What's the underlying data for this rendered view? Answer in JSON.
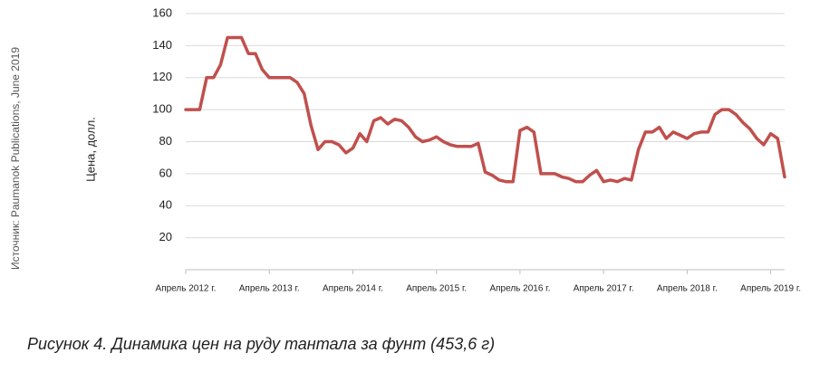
{
  "chart_data": {
    "type": "line",
    "source": "Источник: Paumanok Publications, June 2019",
    "y_label": "Цена, долл.",
    "caption": "Рисунок 4. Динамика цен на руду тантала за фунт (453,6 г)",
    "categories": [
      "Апрель 2012 г.",
      null,
      null,
      null,
      null,
      null,
      null,
      null,
      null,
      null,
      null,
      null,
      "Апрель 2013 г.",
      null,
      null,
      null,
      null,
      null,
      null,
      null,
      null,
      null,
      null,
      null,
      "Апрель 2014 г.",
      null,
      null,
      null,
      null,
      null,
      null,
      null,
      null,
      null,
      null,
      null,
      "Апрель 2015 г.",
      null,
      null,
      null,
      null,
      null,
      null,
      null,
      null,
      null,
      null,
      null,
      "Апрель 2016 г.",
      null,
      null,
      null,
      null,
      null,
      null,
      null,
      null,
      null,
      null,
      null,
      "Апрель 2017 г.",
      null,
      null,
      null,
      null,
      null,
      null,
      null,
      null,
      null,
      null,
      null,
      "Апрель 2018 г.",
      null,
      null,
      null,
      null,
      null,
      null,
      null,
      null,
      null,
      null,
      null,
      "Апрель 2019 г.",
      null,
      null
    ],
    "series": [
      {
        "name": "Цена",
        "color": "#c0504d",
        "values": [
          100,
          100,
          100,
          120,
          120,
          128,
          145,
          145,
          145,
          135,
          135,
          125,
          120,
          120,
          120,
          120,
          117,
          110,
          90,
          75,
          80,
          80,
          78,
          73,
          76,
          85,
          80,
          93,
          95,
          91,
          94,
          93,
          89,
          83,
          80,
          81,
          83,
          80,
          78,
          77,
          77,
          77,
          79,
          61,
          59,
          56,
          55,
          55,
          87,
          89,
          86,
          60,
          60,
          60,
          58,
          57,
          55,
          55,
          59,
          62,
          55,
          56,
          55,
          57,
          56,
          75,
          86,
          86,
          89,
          82,
          86,
          84,
          82,
          85,
          86,
          86,
          97,
          100,
          100,
          97,
          92,
          88,
          82,
          78,
          85,
          82,
          58
        ]
      }
    ],
    "ylim": [
      0,
      160
    ],
    "yticks": [
      20,
      40,
      60,
      80,
      100,
      120,
      140,
      160
    ],
    "grid": true
  }
}
